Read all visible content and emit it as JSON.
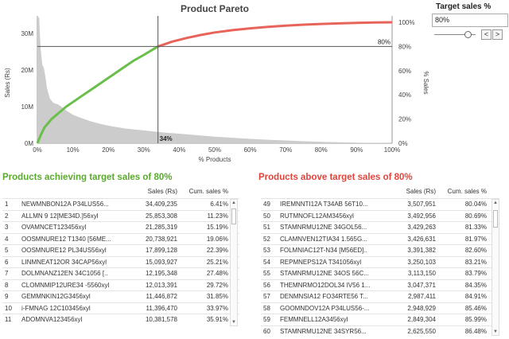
{
  "chart_data": {
    "type": "pareto",
    "title": "Product Pareto",
    "xlabel": "% Products",
    "ylabel_left": "Sales (Rs)",
    "ylabel_right": "% Sales",
    "x_ticks": [
      "0%",
      "10%",
      "20%",
      "30%",
      "40%",
      "50%",
      "60%",
      "70%",
      "80%",
      "90%",
      "100%"
    ],
    "y_left_ticks": [
      "0M",
      "10M",
      "20M",
      "30M"
    ],
    "y_right_ticks": [
      "0%",
      "20%",
      "40%",
      "60%",
      "80%",
      "100%"
    ],
    "xlim": [
      0,
      100
    ],
    "ylim_left": [
      0,
      33
    ],
    "ylim_right": [
      0,
      100
    ],
    "target_line_pct_sales": 80,
    "target_line_label": "80%",
    "threshold_pct_products": 34,
    "threshold_label": "34%",
    "sales_area_millions": [
      [
        0,
        34.4
      ],
      [
        0.5,
        34.4
      ],
      [
        0.9,
        25.9
      ],
      [
        1.4,
        21.3
      ],
      [
        1.8,
        20.7
      ],
      [
        2.3,
        17.9
      ],
      [
        2.7,
        15.1
      ],
      [
        3.5,
        12.2
      ],
      [
        4.5,
        11
      ],
      [
        6,
        10.5
      ],
      [
        8,
        9
      ],
      [
        10,
        7.8
      ],
      [
        12,
        7
      ],
      [
        15,
        6
      ],
      [
        18,
        5.2
      ],
      [
        21,
        4.6
      ],
      [
        25,
        4
      ],
      [
        30,
        3.5
      ],
      [
        35,
        3
      ],
      [
        40,
        2.6
      ],
      [
        45,
        2.2
      ],
      [
        50,
        1.8
      ],
      [
        55,
        1.5
      ],
      [
        60,
        1.2
      ],
      [
        65,
        0.95
      ],
      [
        70,
        0.75
      ],
      [
        75,
        0.55
      ],
      [
        80,
        0.4
      ],
      [
        85,
        0.28
      ],
      [
        90,
        0.18
      ],
      [
        95,
        0.1
      ],
      [
        100,
        0.05
      ]
    ],
    "cumulative_pct": [
      [
        0,
        0
      ],
      [
        0.9,
        6.41
      ],
      [
        2,
        13
      ],
      [
        4,
        20
      ],
      [
        6,
        25
      ],
      [
        8,
        30
      ],
      [
        10,
        34
      ],
      [
        12,
        38
      ],
      [
        15,
        44
      ],
      [
        18,
        50
      ],
      [
        21,
        56
      ],
      [
        24,
        62
      ],
      [
        27,
        68
      ],
      [
        30,
        73
      ],
      [
        32,
        76.5
      ],
      [
        34,
        80
      ],
      [
        38,
        84
      ],
      [
        42,
        87
      ],
      [
        46,
        89.5
      ],
      [
        50,
        91.6
      ],
      [
        55,
        93.5
      ],
      [
        60,
        95
      ],
      [
        65,
        96.2
      ],
      [
        70,
        97.2
      ],
      [
        75,
        98
      ],
      [
        80,
        98.6
      ],
      [
        85,
        99.1
      ],
      [
        90,
        99.5
      ],
      [
        95,
        99.8
      ],
      [
        100,
        100
      ]
    ],
    "colors": {
      "area": "#cccccc",
      "cum_below": "#6abf4b",
      "cum_above": "#e8645a",
      "ref": "#555555"
    }
  },
  "control": {
    "title": "Target sales %",
    "value": "80%",
    "slider_fraction": 0.8,
    "prev_label": "<",
    "next_label": ">"
  },
  "left_table": {
    "title": "Products achieving target sales of 80%",
    "title_color": "#5aaa2c",
    "col_sales": "Sales (Rs)",
    "col_cum": "Cum. sales %",
    "rows": [
      {
        "n": "1",
        "name": "NEWMNBON12A P34LUS56...",
        "sales": "34,409,235",
        "cum": "6.41%"
      },
      {
        "n": "2",
        "name": "ALLMN 9 12[ME34D.]56xyl",
        "sales": "25,853,308",
        "cum": "11.23%"
      },
      {
        "n": "3",
        "name": "OVAMNCET123456xyl",
        "sales": "21,285,319",
        "cum": "15.19%"
      },
      {
        "n": "4",
        "name": "OOSMNURE12 T1340 [56ME...",
        "sales": "20,738,921",
        "cum": "19.06%"
      },
      {
        "n": "5",
        "name": "OOSMNURE12 PL34US56xyl",
        "sales": "17,899,128",
        "cum": "22.39%"
      },
      {
        "n": "6",
        "name": "LINMNEAT12OR 34CAP56xyl",
        "sales": "15,093,927",
        "cum": "25.21%"
      },
      {
        "n": "7",
        "name": "DOLMNANZ12EN 34C1056 [..",
        "sales": "12,195,348",
        "cum": "27.48%"
      },
      {
        "n": "8",
        "name": "CLOMNMIP12URE34 -5560xyl",
        "sales": "12,013,391",
        "cum": "29.72%"
      },
      {
        "n": "9",
        "name": "GEMMNKIN12G3456xyl",
        "sales": "11,446,872",
        "cum": "31.85%"
      },
      {
        "n": "10",
        "name": "i-FMNAG 12C103456xyl",
        "sales": "11,396,470",
        "cum": "33.97%"
      },
      {
        "n": "11",
        "name": "ADOMNVA123456xyl",
        "sales": "10,381,578",
        "cum": "35.91%"
      }
    ]
  },
  "right_table": {
    "title": "Products above target sales of 80%",
    "title_color": "#e0443c",
    "col_sales": "Sales (Rs)",
    "col_cum": "Cum. sales %",
    "rows": [
      {
        "n": "49",
        "name": "IREMNNTI12A T34AB 56T10...",
        "sales": "3,507,951",
        "cum": "80.04%"
      },
      {
        "n": "50",
        "name": "RUTMNOFL12AM3456xyl",
        "sales": "3,492,956",
        "cum": "80.69%"
      },
      {
        "n": "51",
        "name": "STAMNRMU12NE 34GOL56...",
        "sales": "3,429,263",
        "cum": "81.33%"
      },
      {
        "n": "52",
        "name": "CLAMNVEN12TIA34 1.565G...",
        "sales": "3,426,631",
        "cum": "81.97%"
      },
      {
        "n": "53",
        "name": "FOLMNIAC12T-N34 [M56ED]..",
        "sales": "3,391,382",
        "cum": "82.60%"
      },
      {
        "n": "54",
        "name": "REPMNEPS12A T341056xyl",
        "sales": "3,250,103",
        "cum": "83.21%"
      },
      {
        "n": "55",
        "name": "STAMNRMU12NE 34OS 56C...",
        "sales": "3,113,150",
        "cum": "83.79%"
      },
      {
        "n": "56",
        "name": "THEMNRMO12DOL34 IV56 1...",
        "sales": "3,047,371",
        "cum": "84.35%"
      },
      {
        "n": "57",
        "name": "DENMNSIA12 FO34RTE56 T...",
        "sales": "2,987,411",
        "cum": "84.91%"
      },
      {
        "n": "58",
        "name": "GOOMNDOV12A P34LUS56-...",
        "sales": "2,948,929",
        "cum": "85.46%"
      },
      {
        "n": "59",
        "name": "FEMMNELL12A3456xyl",
        "sales": "2,849,304",
        "cum": "85.99%"
      },
      {
        "n": "60",
        "name": "STAMNRMU12NE 34SYR56...",
        "sales": "2,625,550",
        "cum": "86.48%"
      }
    ]
  }
}
